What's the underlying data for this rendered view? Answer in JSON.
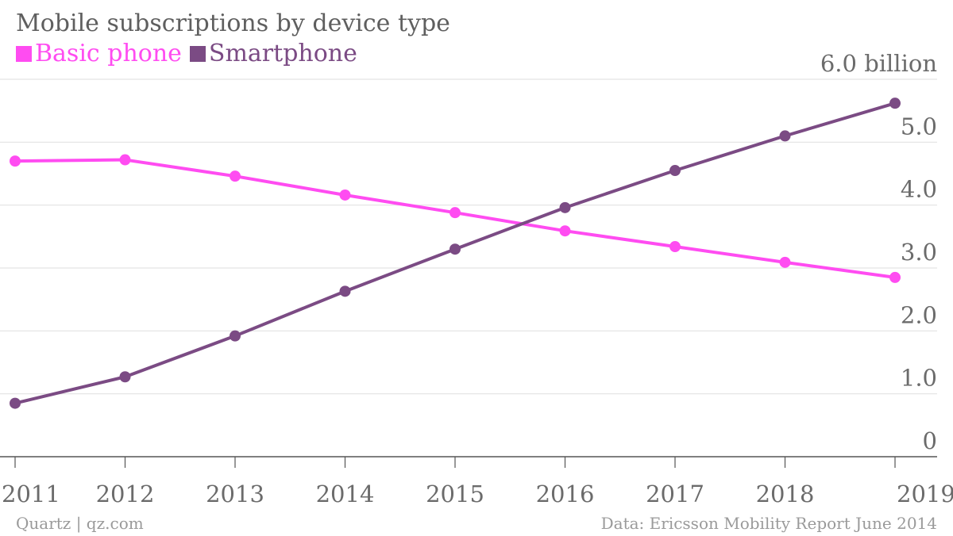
{
  "chart_data": {
    "type": "line",
    "title": "Mobile subscriptions by device type",
    "x": [
      "2011",
      "2012",
      "2013",
      "2014",
      "2015",
      "2016",
      "2017",
      "2018",
      "2019"
    ],
    "series": [
      {
        "name": "Basic phone",
        "color": "#ff4cf1",
        "values": [
          4.7,
          4.72,
          4.46,
          4.16,
          3.88,
          3.59,
          3.34,
          3.09,
          2.85
        ]
      },
      {
        "name": "Smartphone",
        "color": "#7b4b84",
        "values": [
          0.85,
          1.27,
          1.92,
          2.63,
          3.3,
          3.96,
          4.55,
          5.1,
          5.62
        ]
      }
    ],
    "y_ticks": [
      {
        "value": 0,
        "label": "0"
      },
      {
        "value": 1,
        "label": "1.0"
      },
      {
        "value": 2,
        "label": "2.0"
      },
      {
        "value": 3,
        "label": "3.0"
      },
      {
        "value": 4,
        "label": "4.0"
      },
      {
        "value": 5,
        "label": "5.0"
      },
      {
        "value": 6,
        "label": "6.0 billion"
      }
    ],
    "ylim": [
      0,
      6
    ],
    "xlabel": "",
    "ylabel": "",
    "grid": true,
    "legend_position": "top-left"
  },
  "footer": {
    "source_left": "Quartz | qz.com",
    "source_right": "Data: Ericsson Mobility Report June 2014"
  }
}
